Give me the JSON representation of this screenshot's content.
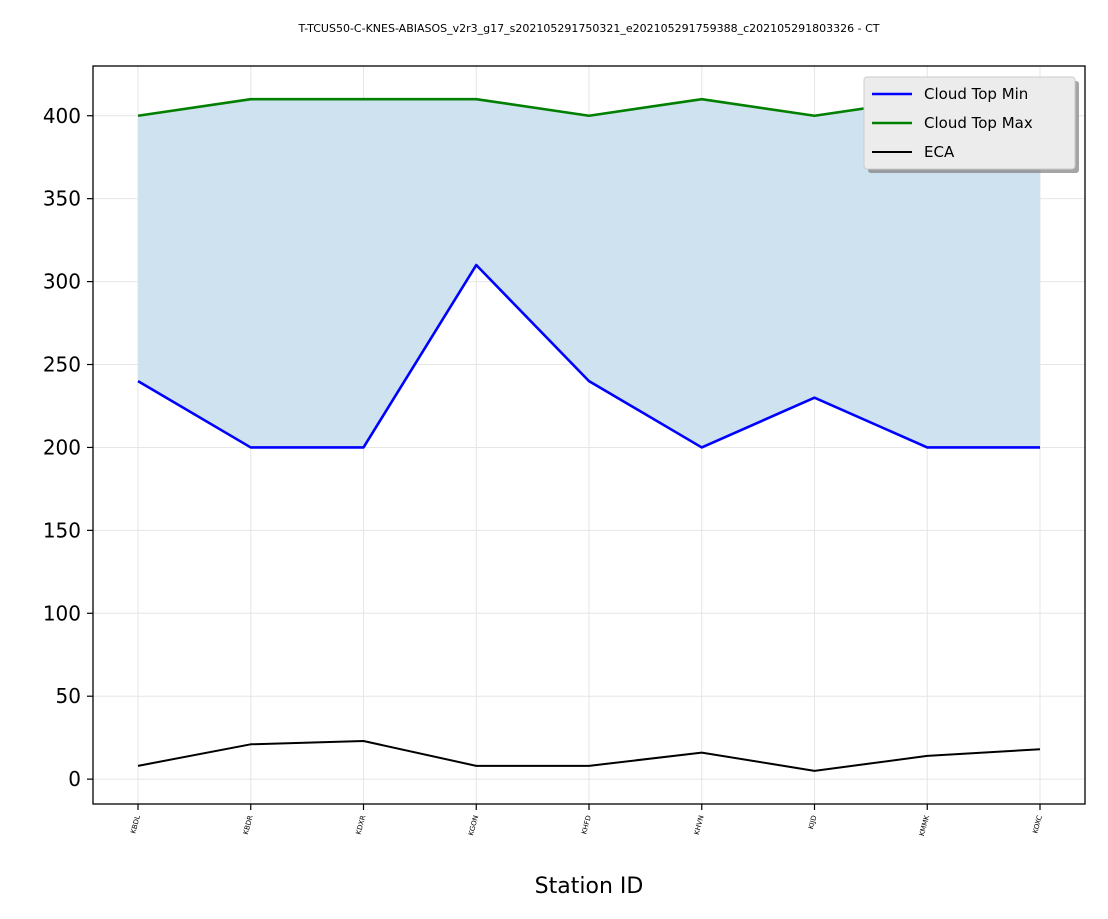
{
  "chart_data": {
    "type": "line",
    "title": "T-TCUS50-C-KNES-ABIASOS_v2r3_g17_s202105291750321_e202105291759388_c202105291803326 - CT",
    "xlabel": "Station ID",
    "ylabel": "",
    "categories": [
      "KBDL",
      "KBDR",
      "KDXR",
      "KGON",
      "KHFD",
      "KHVN",
      "KIJD",
      "KMMK",
      "KOXC"
    ],
    "ylim": [
      -15,
      430
    ],
    "yticks": [
      0,
      50,
      100,
      150,
      200,
      250,
      300,
      350,
      400
    ],
    "grid": true,
    "legend_position": "top-right",
    "fill_between": {
      "lower_series": "Cloud Top Min",
      "upper_series": "Cloud Top Max",
      "color": "#cfe2ef"
    },
    "series": [
      {
        "name": "Cloud Top Min",
        "color": "#0000ff",
        "values": [
          240,
          200,
          200,
          310,
          240,
          200,
          230,
          200,
          200
        ]
      },
      {
        "name": "Cloud Top Max",
        "color": "#008000",
        "values": [
          400,
          410,
          410,
          410,
          400,
          410,
          400,
          410,
          410
        ]
      },
      {
        "name": "ECA",
        "color": "#000000",
        "values": [
          8,
          21,
          23,
          8,
          8,
          16,
          5,
          14,
          18
        ]
      }
    ]
  }
}
